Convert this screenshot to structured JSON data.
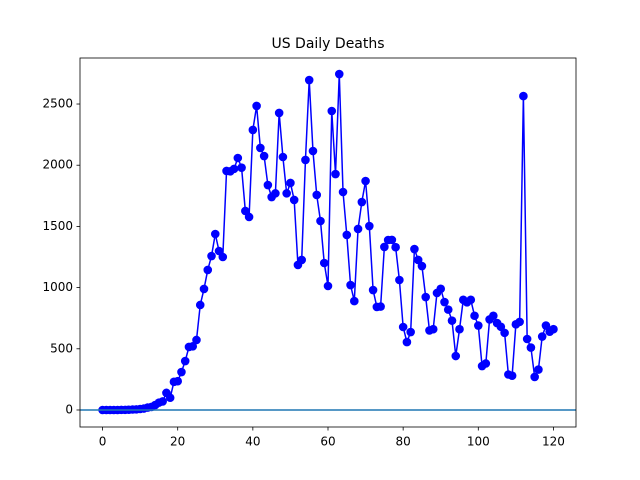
{
  "chart_data": {
    "type": "line",
    "title": "US Daily Deaths",
    "x": [
      0,
      1,
      2,
      3,
      4,
      5,
      6,
      7,
      8,
      9,
      10,
      11,
      12,
      13,
      14,
      15,
      16,
      17,
      18,
      19,
      20,
      21,
      22,
      23,
      24,
      25,
      26,
      27,
      28,
      29,
      30,
      31,
      32,
      33,
      34,
      35,
      36,
      37,
      38,
      39,
      40,
      41,
      42,
      43,
      44,
      45,
      46,
      47,
      48,
      49,
      50,
      51,
      52,
      53,
      54,
      55,
      56,
      57,
      58,
      59,
      60,
      61,
      62,
      63,
      64,
      65,
      66,
      67,
      68,
      69,
      70,
      71,
      72,
      73,
      74,
      75,
      76,
      77,
      78,
      79,
      80,
      81,
      82,
      83,
      84,
      85,
      86,
      87,
      88,
      89,
      90,
      91,
      92,
      93,
      94,
      95,
      96,
      97,
      98,
      99,
      100,
      101,
      102,
      103,
      104,
      105,
      106,
      107,
      108,
      109,
      110,
      111,
      112,
      113,
      114,
      115,
      116,
      117,
      118,
      119,
      120
    ],
    "values": [
      0,
      0,
      0,
      0,
      0,
      1,
      1,
      2,
      4,
      5,
      8,
      12,
      20,
      25,
      40,
      60,
      70,
      140,
      100,
      230,
      235,
      310,
      400,
      515,
      520,
      572,
      858,
      989,
      1144,
      1258,
      1438,
      1299,
      1250,
      1953,
      1950,
      1970,
      2059,
      1980,
      1626,
      1577,
      2288,
      2484,
      2141,
      2075,
      1838,
      1740,
      1770,
      2427,
      2067,
      1770,
      1855,
      1716,
      1185,
      1226,
      2043,
      2696,
      2116,
      1757,
      1544,
      1201,
      1013,
      2443,
      1928,
      2745,
      1781,
      1430,
      1021,
      890,
      1479,
      1699,
      1871,
      1503,
      980,
      842,
      845,
      1332,
      1389,
      1390,
      1330,
      1062,
      678,
      555,
      637,
      1315,
      1226,
      1176,
      923,
      650,
      660,
      956,
      990,
      882,
      820,
      730,
      441,
      660,
      900,
      880,
      900,
      770,
      690,
      359,
      380,
      740,
      770,
      710,
      680,
      630,
      290,
      280,
      700,
      720,
      2565,
      580,
      510,
      270,
      330,
      600,
      690,
      640,
      660
    ],
    "color": "#0000ff",
    "hline": 0,
    "hline_color": "#1f77b4",
    "xlim": [
      -6,
      126
    ],
    "ylim": [
      -139,
      2876
    ],
    "xticks": [
      0,
      20,
      40,
      60,
      80,
      100,
      120
    ],
    "yticks": [
      0,
      500,
      1000,
      1500,
      2000,
      2500
    ]
  }
}
